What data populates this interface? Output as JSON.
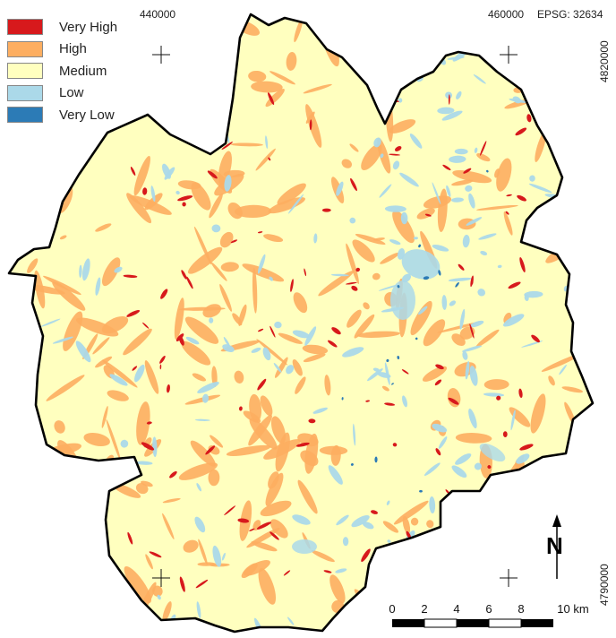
{
  "legend": {
    "items": [
      {
        "label": "Very High",
        "color": "#d7191c"
      },
      {
        "label": "High",
        "color": "#fdae61"
      },
      {
        "label": "Medium",
        "color": "#ffffbf"
      },
      {
        "label": "Low",
        "color": "#abd9e9"
      },
      {
        "label": "Very Low",
        "color": "#2c7bb6"
      }
    ]
  },
  "coordinates": {
    "x_left": "440000",
    "x_right": "460000",
    "crs": "EPSG: 32634",
    "y_top": "4820000",
    "y_bottom": "4790000"
  },
  "north_arrow": {
    "label": "N"
  },
  "scale_bar": {
    "ticks": [
      "0",
      "2",
      "4",
      "6",
      "8",
      "10 km"
    ]
  },
  "colors": {
    "outline": "#000000",
    "medium_fill": "#ffffbf"
  }
}
